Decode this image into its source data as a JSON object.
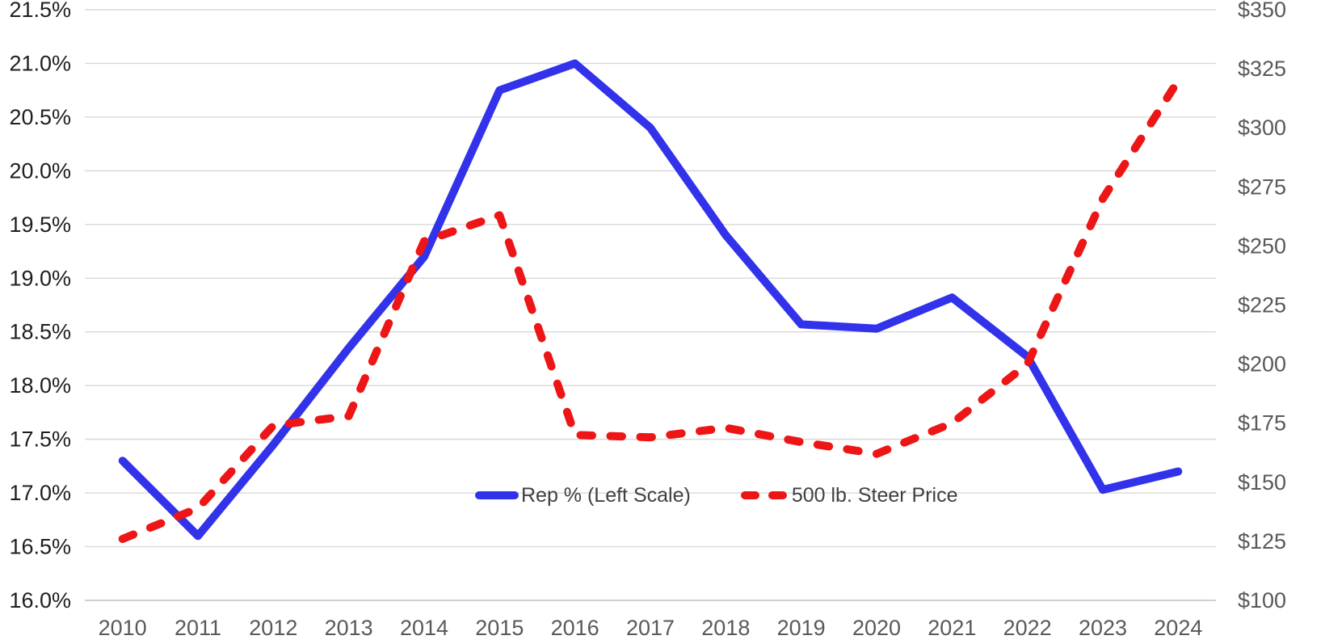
{
  "chart_data": {
    "type": "line",
    "title": "",
    "categories": [
      "2010",
      "2011",
      "2012",
      "2013",
      "2014",
      "2015",
      "2016",
      "2017",
      "2018",
      "2019",
      "2020",
      "2021",
      "2022",
      "2023",
      "2024"
    ],
    "series": [
      {
        "name": "Rep % (Left Scale)",
        "axis": "left",
        "style": "solid",
        "color": "#3232eb",
        "values": [
          17.3,
          16.6,
          17.45,
          18.35,
          19.2,
          20.75,
          21.0,
          20.4,
          19.4,
          18.57,
          18.53,
          18.82,
          18.27,
          17.03,
          17.2
        ]
      },
      {
        "name": "500 lb. Steer Price",
        "axis": "right",
        "style": "dashed",
        "color": "#ed1515",
        "values": [
          126,
          139,
          174,
          178,
          252,
          263,
          170,
          169,
          173,
          167,
          162,
          175,
          200,
          270,
          320
        ]
      }
    ],
    "axes": {
      "left": {
        "min": 16.0,
        "max": 21.5,
        "step": 0.5,
        "format": "percent",
        "tick_labels": [
          "21.5%",
          "21.0%",
          "20.5%",
          "20.0%",
          "19.5%",
          "19.0%",
          "18.5%",
          "18.0%",
          "17.5%",
          "17.0%",
          "16.5%",
          "16.0%"
        ]
      },
      "right": {
        "min": 100,
        "max": 350,
        "step": 25,
        "format": "dollar",
        "tick_labels": [
          "$350",
          "$325",
          "$300",
          "$275",
          "$250",
          "$225",
          "$200",
          "$175",
          "$150",
          "$125",
          "$100"
        ]
      },
      "x": {
        "tick_labels": [
          "2010",
          "2011",
          "2012",
          "2013",
          "2014",
          "2015",
          "2016",
          "2017",
          "2018",
          "2019",
          "2020",
          "2021",
          "2022",
          "2023",
          "2024"
        ]
      }
    },
    "grid": true,
    "legend": {
      "position": "bottom-center",
      "entries": [
        "Rep % (Left Scale)",
        "500 lb. Steer Price"
      ]
    },
    "colors": {
      "gridline": "#d9d9d9",
      "axis_line": "#bfbfbf",
      "left_labels": "#1f1f1f",
      "right_labels": "#595959",
      "x_labels": "#595959",
      "legend_text": "#404040"
    }
  }
}
